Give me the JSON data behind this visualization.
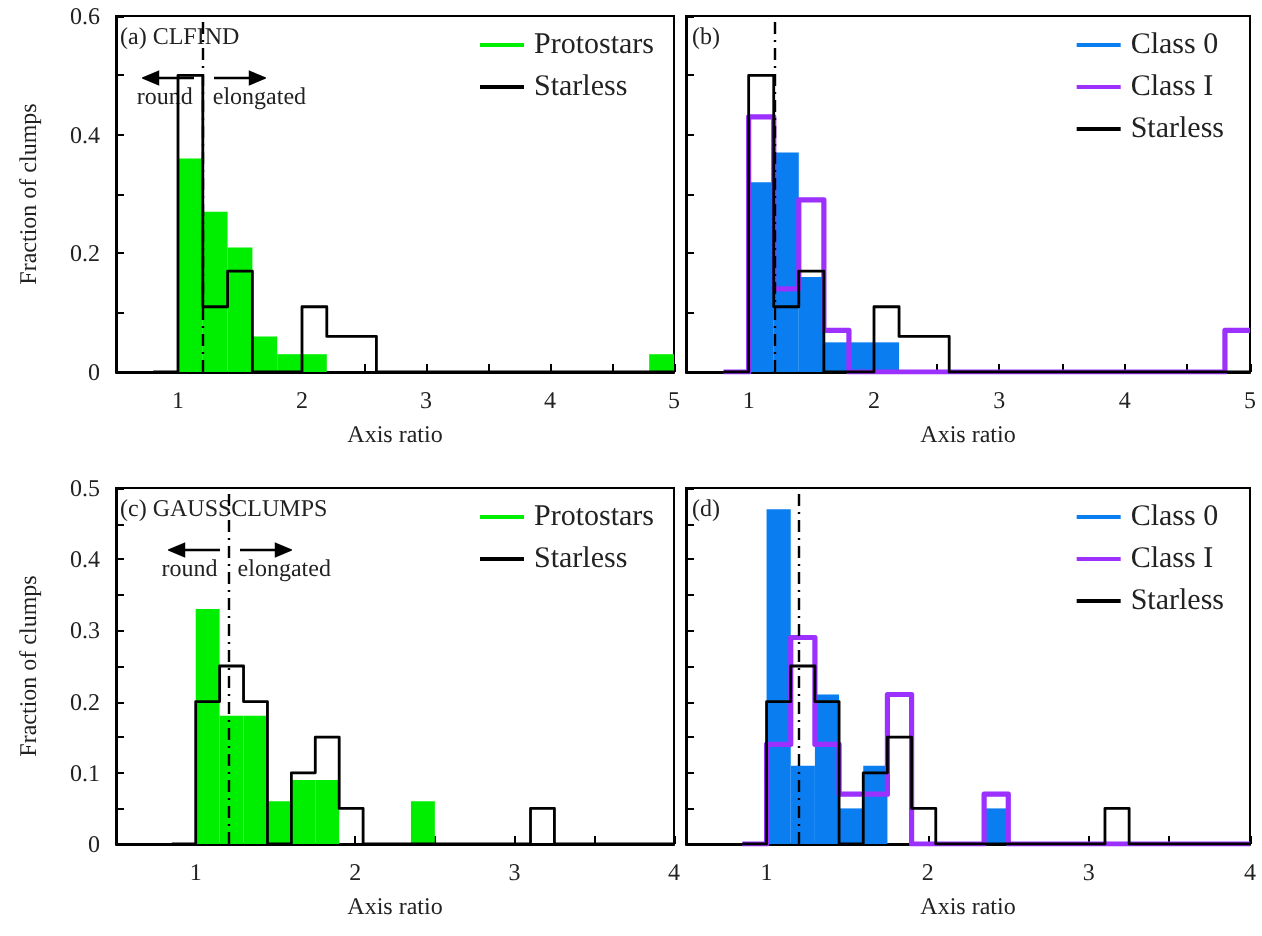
{
  "chart_data": [
    {
      "type": "histogram",
      "xlabel": "Axis ratio",
      "ylabel": "Fraction of clumps",
      "annotations": [
        "(a) CLFIND",
        "round",
        "elongated"
      ],
      "bins": [
        0.8,
        1,
        1.2,
        1.4,
        1.6,
        1.8,
        2,
        2.2,
        2.4,
        2.6,
        2.8,
        3,
        3.2,
        3.4,
        3.6,
        3.8,
        4,
        4.2,
        4.4,
        4.6,
        4.8,
        5
      ],
      "series": [
        {
          "name": "Protostars",
          "color": "#00ee00",
          "values": [
            0,
            0.36,
            0.27,
            0.21,
            0.06,
            0.03,
            0.03,
            0,
            0,
            0,
            0,
            0,
            0,
            0,
            0,
            0,
            0,
            0,
            0,
            0,
            0.03
          ]
        },
        {
          "name": "Starless",
          "type": "step",
          "color": "#000000",
          "x": [
            0.8,
            1,
            1.2,
            1.4,
            1.6,
            1.8,
            2,
            2.2,
            2.4,
            2.6,
            2.8,
            3,
            3.2,
            3.4,
            3.6,
            3.8,
            4,
            4.2,
            4.4,
            4.6,
            4.8,
            5
          ],
          "values": [
            0,
            0.5,
            0.11,
            0.17,
            0,
            0,
            0.11,
            0.06,
            0.06,
            0,
            0,
            0,
            0,
            0,
            0,
            0,
            0,
            0,
            0,
            0,
            0,
            0
          ]
        }
      ],
      "xlim": [
        0.5,
        5
      ],
      "xticks": [
        1,
        {
          "value": 1.5,
          "label": null
        },
        2,
        {
          "value": 2.5,
          "label": null
        },
        3,
        {
          "value": 3.5,
          "label": null
        },
        4,
        {
          "value": 4.5,
          "label": null
        },
        5
      ],
      "ylim": [
        0,
        0.6
      ],
      "yticks": [
        0,
        {
          "value": 0.1,
          "label": null
        },
        0.2,
        {
          "value": 0.3,
          "label": null
        },
        0.4,
        {
          "value": 0.5,
          "label": null
        },
        0.6
      ],
      "ref_lines": [
        {
          "axis": "x",
          "value": 1.2,
          "label": null,
          "line_style": "dashdot"
        }
      ],
      "legend": "top right",
      "grid": false
    },
    {
      "type": "histogram",
      "xlabel": "Axis ratio",
      "annotations": [
        "(b)"
      ],
      "bins": [
        0.8,
        1,
        1.2,
        1.4,
        1.6,
        1.8,
        2,
        2.2,
        2.4,
        2.6,
        2.8,
        3,
        3.2,
        3.4,
        3.6,
        3.8,
        4,
        4.2,
        4.4,
        4.6,
        4.8,
        5
      ],
      "series": [
        {
          "name": "Class 0",
          "color": "#0a7ef0",
          "values": [
            0,
            0.32,
            0.37,
            0.16,
            0.05,
            0.05,
            0.05,
            0,
            0,
            0,
            0,
            0,
            0,
            0,
            0,
            0,
            0,
            0,
            0,
            0,
            0
          ]
        },
        {
          "name": "Class I",
          "type": "step",
          "color": "#9b30ff",
          "x": [
            0.8,
            1,
            1.2,
            1.4,
            1.6,
            1.8,
            2,
            2.2,
            2.4,
            2.6,
            2.8,
            3,
            3.2,
            3.4,
            3.6,
            3.8,
            4,
            4.2,
            4.4,
            4.6,
            4.8,
            5
          ],
          "values": [
            0,
            0.43,
            0.14,
            0.29,
            0.07,
            0,
            0,
            0,
            0,
            0,
            0,
            0,
            0,
            0,
            0,
            0,
            0,
            0,
            0,
            0,
            0.07,
            0.07
          ]
        },
        {
          "name": "Starless",
          "type": "step",
          "color": "#000000",
          "x": [
            0.8,
            1,
            1.2,
            1.4,
            1.6,
            1.8,
            2,
            2.2,
            2.4,
            2.6,
            2.8,
            3,
            3.2,
            3.4,
            3.6,
            3.8,
            4,
            4.2,
            4.4,
            4.6,
            4.8,
            5
          ],
          "values": [
            0,
            0.5,
            0.11,
            0.17,
            0,
            0,
            0.11,
            0.06,
            0.06,
            0,
            0,
            0,
            0,
            0,
            0,
            0,
            0,
            0,
            0,
            0,
            0,
            0
          ]
        }
      ],
      "xlim": [
        0.5,
        5
      ],
      "xticks": [
        1,
        {
          "value": 1.5,
          "label": null
        },
        2,
        {
          "value": 2.5,
          "label": null
        },
        3,
        {
          "value": 3.5,
          "label": null
        },
        4,
        {
          "value": 4.5,
          "label": null
        },
        5
      ],
      "ylim": [
        0,
        0.6
      ],
      "yticks": [
        0,
        {
          "value": 0.1,
          "label": null
        },
        0.2,
        {
          "value": 0.3,
          "label": null
        },
        0.4,
        {
          "value": 0.5,
          "label": null
        },
        0.6
      ],
      "tick_labels": "x",
      "ref_lines": [
        {
          "axis": "x",
          "value": 1.2,
          "label": null,
          "line_style": "dashdot"
        }
      ],
      "legend": "top right",
      "grid": false
    },
    {
      "type": "histogram",
      "xlabel": "Axis ratio",
      "ylabel": "Fraction of clumps",
      "annotations": [
        "(c) GAUSSCLUMPS",
        "round",
        "elongated"
      ],
      "bins": [
        0.85,
        1,
        1.15,
        1.3,
        1.45,
        1.6,
        1.75,
        1.9,
        2.05,
        2.2,
        2.35,
        2.5,
        2.65,
        2.8,
        2.95,
        3.1,
        3.25,
        3.4,
        3.55,
        3.7,
        3.85,
        4
      ],
      "series": [
        {
          "name": "Protostars",
          "color": "#00ee00",
          "values": [
            0,
            0.33,
            0.18,
            0.18,
            0.06,
            0.09,
            0.09,
            0,
            0,
            0,
            0.06,
            0,
            0,
            0,
            0,
            0,
            0,
            0,
            0,
            0,
            0
          ]
        },
        {
          "name": "Starless",
          "type": "step",
          "color": "#000000",
          "x": [
            0.85,
            1,
            1.15,
            1.3,
            1.45,
            1.6,
            1.75,
            1.9,
            2.05,
            2.2,
            2.35,
            2.5,
            2.65,
            2.8,
            2.95,
            3.1,
            3.25,
            3.4,
            3.55,
            3.7,
            3.85,
            4
          ],
          "values": [
            0,
            0.2,
            0.25,
            0.2,
            0,
            0.1,
            0.15,
            0.05,
            0,
            0,
            0,
            0,
            0,
            0,
            0,
            0.05,
            0,
            0,
            0,
            0,
            0,
            0
          ]
        }
      ],
      "xlim": [
        0.5,
        4
      ],
      "xticks": [
        1,
        {
          "value": 1.5,
          "label": null
        },
        2,
        {
          "value": 2.5,
          "label": null
        },
        3,
        {
          "value": 3.5,
          "label": null
        },
        4
      ],
      "ylim": [
        0,
        0.5
      ],
      "yticks": [
        0,
        {
          "value": 0.05,
          "label": null
        },
        0.1,
        {
          "value": 0.15,
          "label": null
        },
        0.2,
        {
          "value": 0.25,
          "label": null
        },
        0.3,
        {
          "value": 0.35,
          "label": null
        },
        0.4,
        {
          "value": 0.45,
          "label": null
        },
        0.5
      ],
      "ref_lines": [
        {
          "axis": "x",
          "value": 1.2,
          "label": null,
          "line_style": "dashdot"
        }
      ],
      "legend": "top right",
      "grid": false
    },
    {
      "type": "histogram",
      "xlabel": "Axis ratio",
      "annotations": [
        "(d)"
      ],
      "bins": [
        0.85,
        1,
        1.15,
        1.3,
        1.45,
        1.6,
        1.75,
        1.9,
        2.05,
        2.2,
        2.35,
        2.5,
        2.65,
        2.8,
        2.95,
        3.1,
        3.25,
        3.4,
        3.55,
        3.7,
        3.85,
        4
      ],
      "series": [
        {
          "name": "Class 0",
          "color": "#0a7ef0",
          "values": [
            0,
            0.47,
            0.11,
            0.21,
            0.05,
            0.11,
            0,
            0,
            0,
            0,
            0.05,
            0,
            0,
            0,
            0,
            0,
            0,
            0,
            0,
            0,
            0
          ]
        },
        {
          "name": "Class I",
          "type": "step",
          "color": "#9b30ff",
          "x": [
            0.85,
            1,
            1.15,
            1.3,
            1.45,
            1.6,
            1.75,
            1.9,
            2.05,
            2.2,
            2.35,
            2.5,
            2.65,
            2.8,
            2.95,
            3.1,
            3.25,
            3.4,
            3.55,
            3.7,
            3.85,
            4
          ],
          "values": [
            0,
            0.14,
            0.29,
            0.14,
            0.07,
            0.07,
            0.21,
            0,
            0,
            0,
            0.07,
            0,
            0,
            0,
            0,
            0,
            0,
            0,
            0,
            0,
            0,
            0
          ]
        },
        {
          "name": "Starless",
          "type": "step",
          "color": "#000000",
          "x": [
            0.85,
            1,
            1.15,
            1.3,
            1.45,
            1.6,
            1.75,
            1.9,
            2.05,
            2.2,
            2.35,
            2.5,
            2.65,
            2.8,
            2.95,
            3.1,
            3.25,
            3.4,
            3.55,
            3.7,
            3.85,
            4
          ],
          "values": [
            0,
            0.2,
            0.25,
            0.2,
            0,
            0.1,
            0.15,
            0.05,
            0,
            0,
            0,
            0,
            0,
            0,
            0,
            0.05,
            0,
            0,
            0,
            0,
            0,
            0
          ]
        }
      ],
      "xlim": [
        0.5,
        4
      ],
      "xticks": [
        1,
        {
          "value": 1.5,
          "label": null
        },
        2,
        {
          "value": 2.5,
          "label": null
        },
        3,
        {
          "value": 3.5,
          "label": null
        },
        4
      ],
      "ylim": [
        0,
        0.5
      ],
      "yticks": [
        0,
        {
          "value": 0.05,
          "label": null
        },
        0.1,
        {
          "value": 0.15,
          "label": null
        },
        0.2,
        {
          "value": 0.25,
          "label": null
        },
        0.3,
        {
          "value": 0.35,
          "label": null
        },
        0.4,
        {
          "value": 0.45,
          "label": null
        },
        0.5
      ],
      "tick_labels": "x",
      "ref_lines": [
        {
          "axis": "x",
          "value": 1.2,
          "label": null,
          "line_style": "dashdot"
        }
      ],
      "legend": "top right",
      "grid": false
    }
  ]
}
